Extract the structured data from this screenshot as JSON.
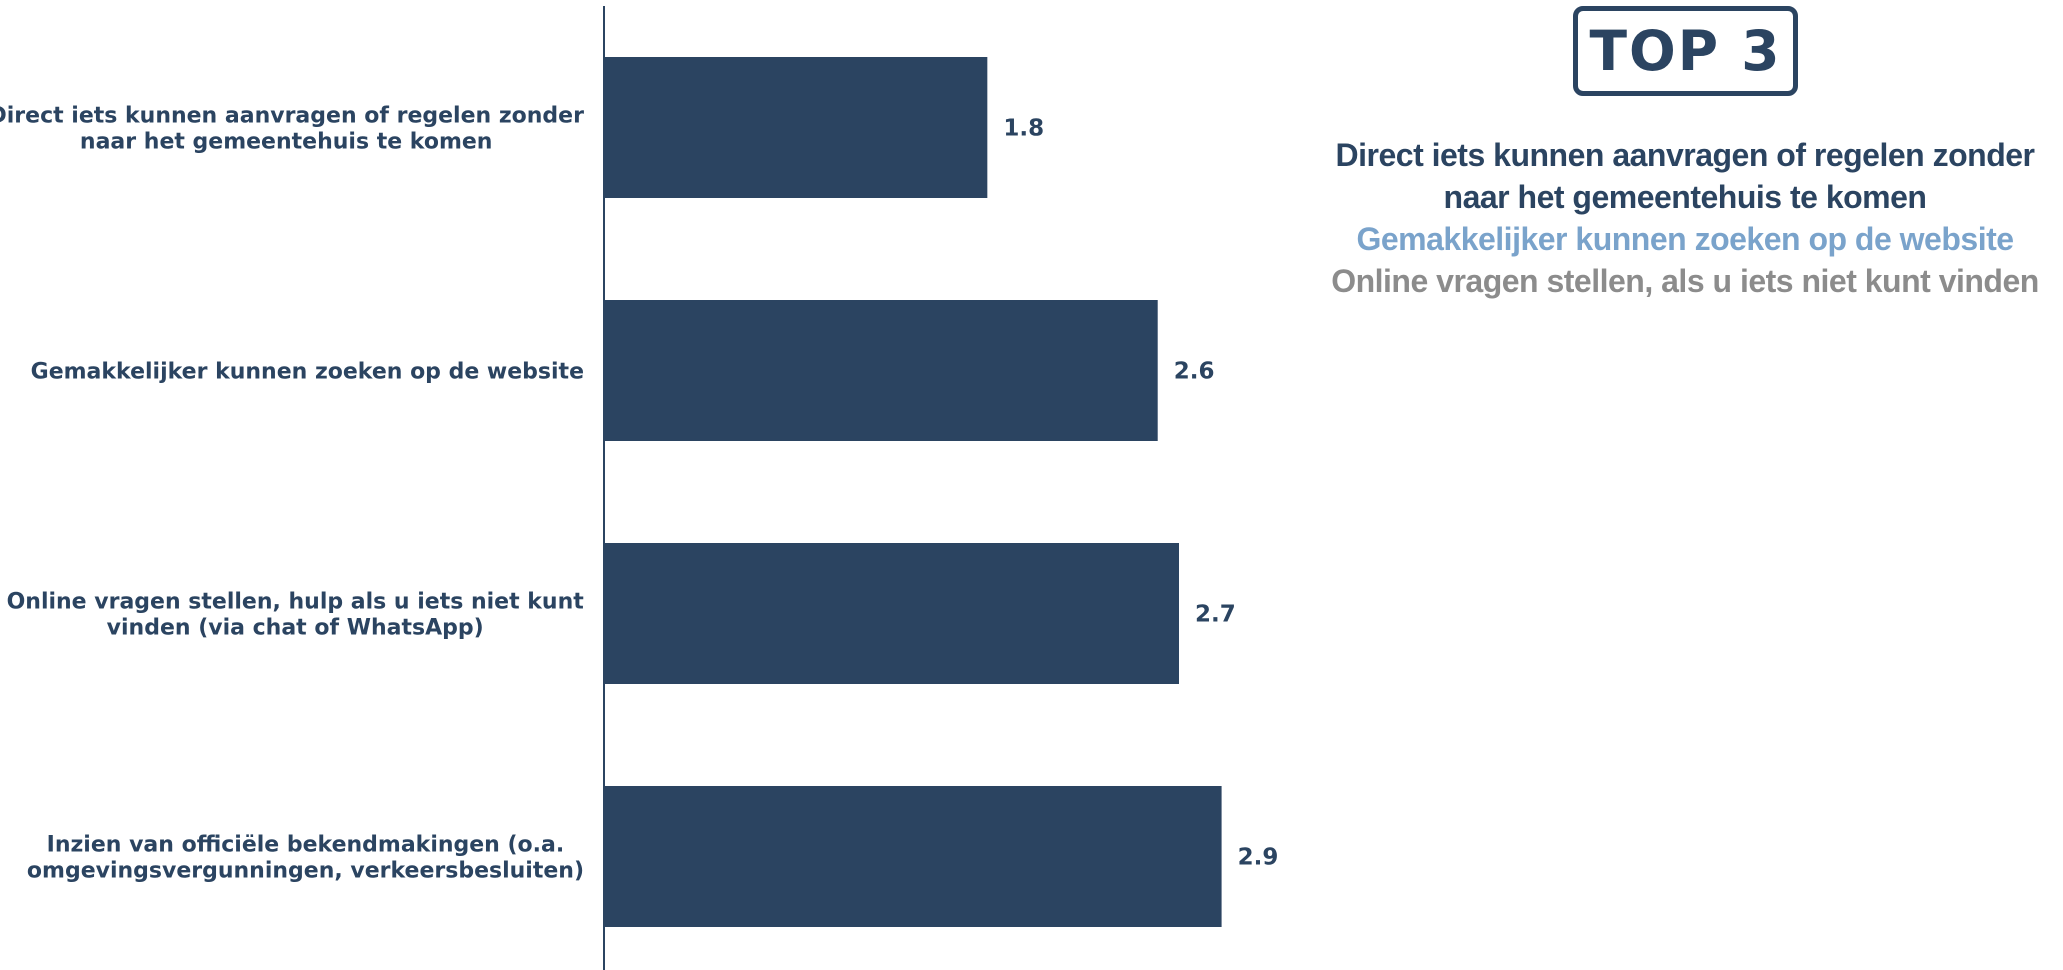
{
  "chart_data": {
    "type": "bar",
    "orientation": "horizontal",
    "categories": [
      [
        "Direct iets kunnen aanvragen of regelen zonder",
        "naar het gemeentehuis te komen"
      ],
      [
        "Gemakkelijker kunnen zoeken op de website"
      ],
      [
        "Online vragen stellen, hulp als u iets niet kunt",
        "vinden (via chat of WhatsApp)"
      ],
      [
        "Inzien van officiële bekendmakingen (o.a.",
        "omgevingsvergunningen, verkeersbesluiten)"
      ]
    ],
    "values": [
      1.8,
      2.6,
      2.7,
      2.9
    ],
    "value_labels": [
      "1.8",
      "2.6",
      "2.7",
      "2.9"
    ],
    "bar_color": "#2b4461",
    "axis_color": "#2b4461",
    "xlim": [
      0,
      5.4
    ],
    "grid": false,
    "legend": "none"
  },
  "top3": {
    "badge": "TOP 3",
    "items": [
      {
        "text": "Direct iets kunnen aanvragen of regelen zonder naar het gemeentehuis te komen",
        "color": "#2b4461"
      },
      {
        "text": "Gemakkelijker kunnen zoeken op de website",
        "color": "#7aa3cb"
      },
      {
        "text": "Online vragen stellen, als u iets niet kunt vinden",
        "color": "#8c8c8c"
      }
    ]
  }
}
